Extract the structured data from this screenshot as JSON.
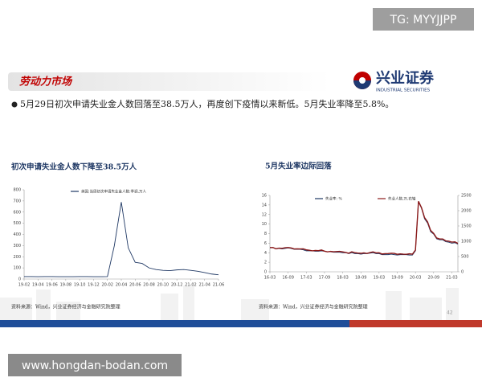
{
  "watermark_top": "TG: MYYJJPP",
  "header": {
    "title": "劳动力市场",
    "logo_name": "兴业证券",
    "logo_sub": "INDUSTRIAL SECURITIES"
  },
  "bullet": "5月29日初次申请失业金人数回落至38.5万人，再度创下疫情以来新低。5月失业率降至5.8%。",
  "page_number": "42",
  "watermark_bottom": "www.hongdan-bodan.com",
  "chart_data": [
    {
      "type": "line",
      "title": "初次申请失业金人数下降至38.5万人",
      "source": "资料来源：Wind，兴业证券经济与金融研究院整理",
      "categories": [
        "19-02",
        null,
        "19-04",
        null,
        "19-06",
        null,
        "19-08",
        null,
        "19-10",
        null,
        "19-12",
        null,
        "20-02",
        null,
        "20-04",
        null,
        "20-06",
        null,
        "20-08",
        null,
        "20-10",
        null,
        "20-12",
        null,
        "21-02",
        null,
        "21-04",
        null,
        "21-06"
      ],
      "series": [
        {
          "name": "美国:当周初次申请失业金人数:季调,万人",
          "color": "#1f3864",
          "values": [
            22,
            22,
            21,
            22,
            22,
            21,
            21,
            21,
            22,
            22,
            21,
            21,
            22,
            300,
            690,
            280,
            150,
            140,
            100,
            85,
            78,
            75,
            82,
            85,
            78,
            70,
            58,
            45,
            38.5
          ]
        }
      ],
      "ylim": [
        0,
        800
      ],
      "yticks": [
        0,
        100,
        200,
        300,
        400,
        500,
        600,
        700,
        800
      ]
    },
    {
      "type": "line",
      "title": "5月失业率边际回落",
      "source": "资料来源：Wind，兴业证券经济与金融研究院整理",
      "categories": [
        "16-03",
        null,
        null,
        null,
        null,
        null,
        "16-09",
        null,
        null,
        null,
        null,
        null,
        "17-03",
        null,
        null,
        null,
        null,
        null,
        "17-09",
        null,
        null,
        null,
        null,
        null,
        "18-03",
        null,
        null,
        null,
        null,
        null,
        "18-09",
        null,
        null,
        null,
        null,
        null,
        "19-03",
        null,
        null,
        null,
        null,
        null,
        "19-09",
        null,
        null,
        null,
        null,
        null,
        "20-03",
        null,
        null,
        null,
        null,
        null,
        "20-09",
        null,
        null,
        null,
        null,
        null,
        "21-03",
        null,
        null
      ],
      "series": [
        {
          "name": "失业率: %",
          "color": "#1f3864",
          "values": [
            5.0,
            5.1,
            4.8,
            4.9,
            4.8,
            4.9,
            5.0,
            4.9,
            4.7,
            4.7,
            4.7,
            4.6,
            4.4,
            4.4,
            4.4,
            4.3,
            4.3,
            4.4,
            4.3,
            4.2,
            4.2,
            4.1,
            4.1,
            4.1,
            4.0,
            4.0,
            3.8,
            4.0,
            3.8,
            3.8,
            3.7,
            3.8,
            3.8,
            3.9,
            4.0,
            3.8,
            3.8,
            3.6,
            3.6,
            3.6,
            3.7,
            3.6,
            3.5,
            3.6,
            3.6,
            3.6,
            3.5,
            3.5,
            4.4,
            14.7,
            13.3,
            11.1,
            10.2,
            8.4,
            7.9,
            6.9,
            6.7,
            6.7,
            6.3,
            6.2,
            6.0,
            6.1,
            5.8
          ]
        },
        {
          "name": "失业人数,万,右轴",
          "color": "#8b1a1a",
          "axis": "y2",
          "values": [
            795,
            793,
            753,
            775,
            768,
            787,
            795,
            781,
            748,
            752,
            749,
            752,
            720,
            707,
            686,
            698,
            693,
            713,
            676,
            653,
            668,
            657,
            664,
            668,
            652,
            632,
            607,
            656,
            628,
            613,
            605,
            620,
            601,
            631,
            653,
            621,
            622,
            582,
            594,
            598,
            606,
            604,
            575,
            586,
            578,
            575,
            589,
            578,
            714,
            2308,
            2098,
            1775,
            1634,
            1355,
            1258,
            1106,
            1074,
            1074,
            1013,
            1001,
            971,
            982,
            932
          ]
        }
      ],
      "ylim": [
        0,
        16
      ],
      "yticks": [
        0,
        2,
        4,
        6,
        8,
        10,
        12,
        14,
        16
      ],
      "y2lim": [
        0,
        2500
      ],
      "y2ticks": [
        0,
        500,
        1000,
        1500,
        2000,
        2500
      ]
    }
  ]
}
